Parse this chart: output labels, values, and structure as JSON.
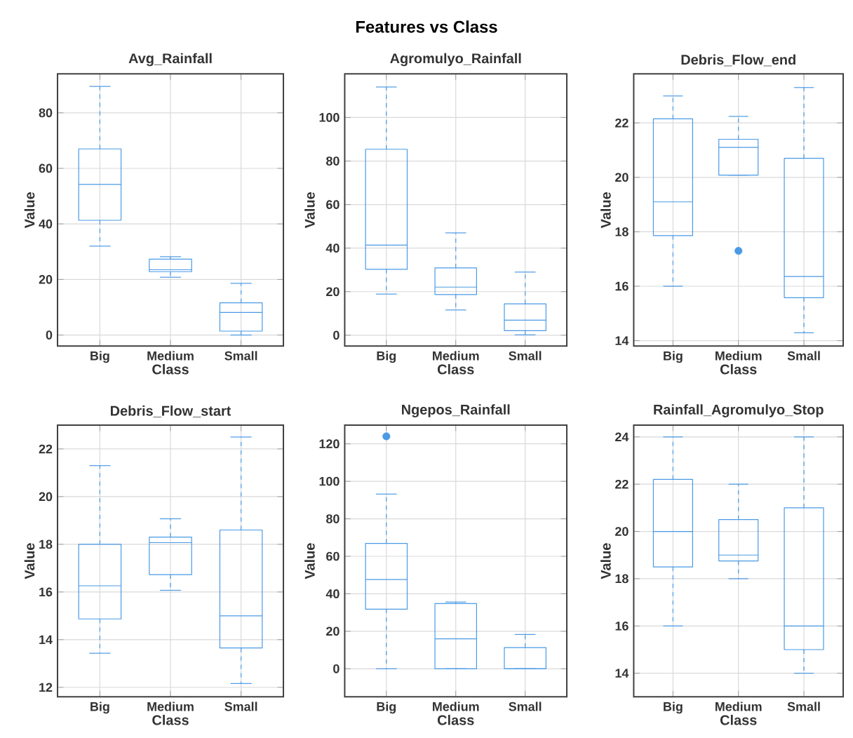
{
  "chart_data": [
    {
      "type": "other",
      "title": "Features vs Class"
    },
    {
      "type": "box",
      "title": "Avg_Rainfall",
      "xlabel": "Class",
      "ylabel": "Value",
      "categories": [
        "Big",
        "Medium",
        "Small"
      ],
      "color": "#4a9ae6",
      "grid": true,
      "ylim": [
        -4,
        94
      ],
      "yticks": [
        0,
        20,
        40,
        60,
        80
      ],
      "boxes": [
        {
          "low": 32,
          "q1": 41.3,
          "median": 54.2,
          "q3": 67,
          "high": 89.5
        },
        {
          "low": 20.8,
          "q1": 22.8,
          "median": 23.5,
          "q3": 27.3,
          "high": 28.2
        },
        {
          "low": 0,
          "q1": 1.4,
          "median": 8.1,
          "q3": 11.6,
          "high": 18.6
        }
      ]
    },
    {
      "type": "box",
      "title": "Agromulyo_Rainfall",
      "xlabel": "Class",
      "ylabel": "Value",
      "categories": [
        "Big",
        "Medium",
        "Small"
      ],
      "color": "#4a9ae6",
      "grid": true,
      "ylim": [
        -5,
        120
      ],
      "yticks": [
        0,
        20,
        40,
        60,
        80,
        100
      ],
      "boxes": [
        {
          "low": 18.9,
          "q1": 30.3,
          "median": 41.4,
          "q3": 85.4,
          "high": 114
        },
        {
          "low": 11.6,
          "q1": 18.7,
          "median": 22.1,
          "q3": 30.9,
          "high": 47
        },
        {
          "low": 0.2,
          "q1": 2.1,
          "median": 6.9,
          "q3": 14.4,
          "high": 29
        }
      ]
    },
    {
      "type": "box",
      "title": "Debris_Flow_end",
      "xlabel": "Class",
      "ylabel": "Value",
      "categories": [
        "Big",
        "Medium",
        "Small"
      ],
      "color": "#4a9ae6",
      "grid": true,
      "ylim": [
        13.8,
        23.8
      ],
      "yticks": [
        14,
        16,
        18,
        20,
        22
      ],
      "boxes": [
        {
          "low": 16,
          "q1": 17.86,
          "median": 19.1,
          "q3": 22.15,
          "high": 22.99
        },
        {
          "low": 20.08,
          "q1": 20.08,
          "median": 21.1,
          "q3": 21.4,
          "high": 22.24,
          "outliers": [
            17.3
          ]
        },
        {
          "low": 14.29,
          "q1": 15.58,
          "median": 16.36,
          "q3": 20.7,
          "high": 23.3
        }
      ]
    },
    {
      "type": "box",
      "title": "Debris_Flow_start",
      "xlabel": "Class",
      "ylabel": "Value",
      "categories": [
        "Big",
        "Medium",
        "Small"
      ],
      "color": "#4a9ae6",
      "grid": true,
      "ylim": [
        11.6,
        23
      ],
      "yticks": [
        12,
        14,
        16,
        18,
        20,
        22
      ],
      "boxes": [
        {
          "low": 13.43,
          "q1": 14.87,
          "median": 16.26,
          "q3": 18,
          "high": 21.3
        },
        {
          "low": 16.07,
          "q1": 16.73,
          "median": 18.07,
          "q3": 18.3,
          "high": 19.07
        },
        {
          "low": 12.16,
          "q1": 13.65,
          "median": 15,
          "q3": 18.6,
          "high": 22.5
        }
      ]
    },
    {
      "type": "box",
      "title": "Ngepos_Rainfall",
      "xlabel": "Class",
      "ylabel": "Value",
      "categories": [
        "Big",
        "Medium",
        "Small"
      ],
      "color": "#4a9ae6",
      "grid": true,
      "ylim": [
        -15,
        130
      ],
      "yticks": [
        0,
        20,
        40,
        60,
        80,
        100,
        120
      ],
      "boxes": [
        {
          "low": 0,
          "q1": 31.8,
          "median": 47.6,
          "q3": 66.9,
          "high": 93.2,
          "outliers": [
            124
          ]
        },
        {
          "low": 0,
          "q1": 0,
          "median": 16,
          "q3": 34.8,
          "high": 35.6
        },
        {
          "low": 0,
          "q1": 0,
          "median": 0,
          "q3": 11.3,
          "high": 18.3
        }
      ]
    },
    {
      "type": "box",
      "title": "Rainfall_Agromulyo_Stop",
      "xlabel": "Class",
      "ylabel": "Value",
      "categories": [
        "Big",
        "Medium",
        "Small"
      ],
      "color": "#4a9ae6",
      "grid": true,
      "ylim": [
        13,
        24.5
      ],
      "yticks": [
        14,
        16,
        18,
        20,
        22,
        24
      ],
      "boxes": [
        {
          "low": 16,
          "q1": 18.5,
          "median": 20,
          "q3": 22.2,
          "high": 24
        },
        {
          "low": 18,
          "q1": 18.75,
          "median": 19,
          "q3": 20.5,
          "high": 22
        },
        {
          "low": 14,
          "q1": 15,
          "median": 16,
          "q3": 21,
          "high": 24
        }
      ]
    }
  ]
}
